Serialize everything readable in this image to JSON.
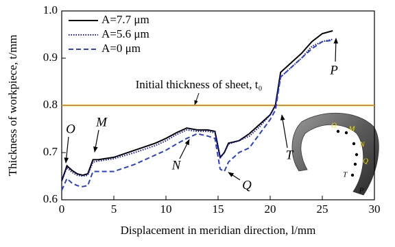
{
  "chart_data": {
    "type": "line",
    "x_label": "Displacement in meridian direction, l/mm",
    "y_label": "Thickness of workpiece, t/mm",
    "x": [
      0,
      0.5,
      1,
      1.5,
      2,
      2.5,
      3,
      3.5,
      5,
      7,
      9,
      10,
      11,
      12,
      13,
      14,
      14.7,
      15.2,
      15.6,
      16,
      17,
      18,
      19,
      20,
      20.5,
      21,
      22,
      23,
      24,
      25,
      26
    ],
    "series": [
      {
        "name": "A=7.7 μm",
        "color": "#000000",
        "dash": "solid",
        "values": [
          0.64,
          0.672,
          0.662,
          0.655,
          0.652,
          0.655,
          0.685,
          0.685,
          0.69,
          0.705,
          0.72,
          0.73,
          0.742,
          0.752,
          0.748,
          0.748,
          0.745,
          0.69,
          0.7,
          0.72,
          0.725,
          0.74,
          0.76,
          0.78,
          0.8,
          0.87,
          0.89,
          0.91,
          0.935,
          0.952,
          0.958
        ]
      },
      {
        "name": "A=5.6 μm",
        "color": "#1010c0",
        "dash": "dotted",
        "values": [
          0.64,
          0.668,
          0.658,
          0.652,
          0.65,
          0.652,
          0.68,
          0.682,
          0.687,
          0.7,
          0.715,
          0.725,
          0.738,
          0.748,
          0.745,
          0.745,
          0.742,
          0.688,
          0.7,
          0.718,
          0.725,
          0.735,
          0.755,
          0.78,
          0.8,
          0.86,
          0.88,
          0.9,
          0.925,
          0.935,
          0.94
        ]
      },
      {
        "name": "A=0 μm",
        "color": "#2a3fd6",
        "dash": "dashed",
        "values": [
          0.62,
          0.645,
          0.635,
          0.63,
          0.628,
          0.63,
          0.66,
          0.66,
          0.66,
          0.675,
          0.695,
          0.705,
          0.718,
          0.73,
          0.74,
          0.735,
          0.73,
          0.665,
          0.66,
          0.68,
          0.7,
          0.71,
          0.74,
          0.77,
          0.79,
          0.86,
          0.88,
          0.9,
          0.92,
          0.935,
          0.938
        ]
      }
    ],
    "reference_line": {
      "value": 0.8,
      "color": "#f08c00",
      "label": "Initial thickness of sheet, t₀"
    },
    "annotations": [
      "O",
      "M",
      "N",
      "Q",
      "T",
      "P"
    ],
    "inset_labels": [
      "O",
      "M",
      "N",
      "Q",
      "T",
      "P"
    ],
    "xlim": [
      0,
      30
    ],
    "xticks": [
      0,
      5,
      10,
      15,
      20,
      25,
      30
    ],
    "ylim": [
      0.6,
      1.0
    ],
    "yticks": [
      0.6,
      0.7,
      0.8,
      0.9,
      {
        "value": 1.0,
        "label": "1.0"
      }
    ],
    "grid": false,
    "legend": "upper left"
  }
}
